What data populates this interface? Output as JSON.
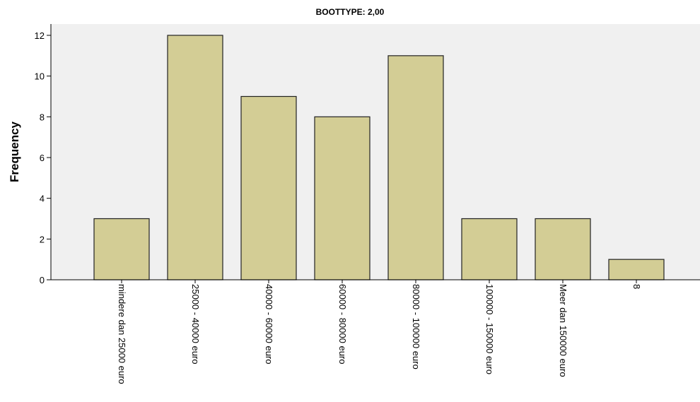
{
  "chart_data": {
    "type": "bar",
    "title": "BOOTTYPE: 2,00",
    "xlabel": "",
    "ylabel": "Frequency",
    "categories": [
      "mindere dan 25000 euro",
      "25000 - 40000 euro",
      "40000 - 60000 euro",
      "60000 - 80000 euro",
      "80000 - 100000 euro",
      "100000 - 150000 euro",
      "Meer dan 150000 euro",
      "8"
    ],
    "values": [
      3,
      12,
      9,
      8,
      11,
      3,
      3,
      1
    ],
    "ylim": [
      0,
      12
    ],
    "yticks": [
      "0",
      "2",
      "4",
      "6",
      "8",
      "10",
      "12"
    ],
    "grid": false,
    "legend": "none",
    "colors": {
      "bar_fill": "#d3cd95",
      "bar_stroke": "#222222",
      "plot_background": "#f0f0f0",
      "page_background": "#ffffff"
    }
  }
}
